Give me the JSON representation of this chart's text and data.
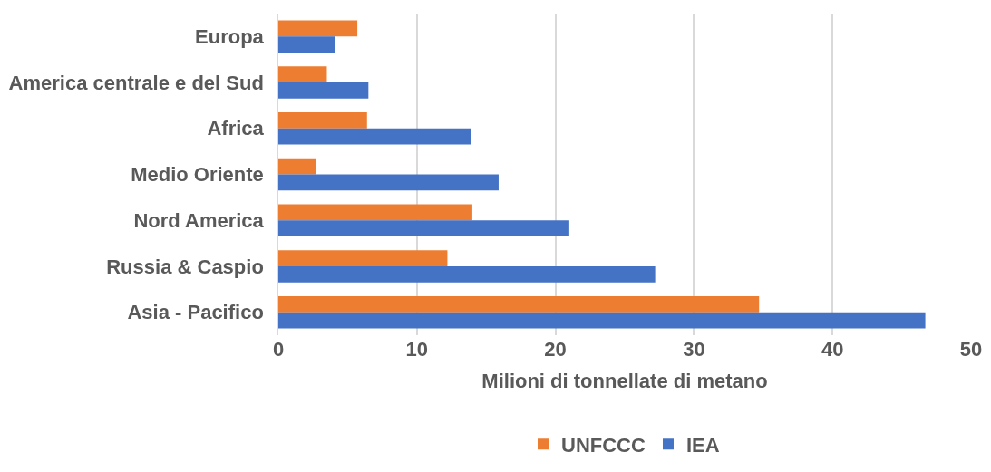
{
  "chart_data": {
    "type": "bar",
    "orientation": "horizontal",
    "xlabel": "Milioni di tonnellate di metano",
    "categories": [
      "Europa",
      "America centrale e del Sud",
      "Africa",
      "Medio Oriente",
      "Nord America",
      "Russia & Caspio",
      "Asia - Pacifico"
    ],
    "series": [
      {
        "name": "UNFCCC",
        "color": "#ed7d31",
        "values": [
          5.7,
          3.5,
          6.4,
          2.7,
          14.0,
          12.2,
          34.7
        ]
      },
      {
        "name": "IEA",
        "color": "#4472c4",
        "values": [
          4.1,
          6.5,
          13.9,
          15.9,
          21.0,
          27.2,
          46.7
        ]
      }
    ],
    "xlim": [
      0,
      50
    ],
    "xticks": [
      0,
      10,
      20,
      30,
      40,
      50
    ],
    "grid": "x",
    "legend": "bottom"
  }
}
